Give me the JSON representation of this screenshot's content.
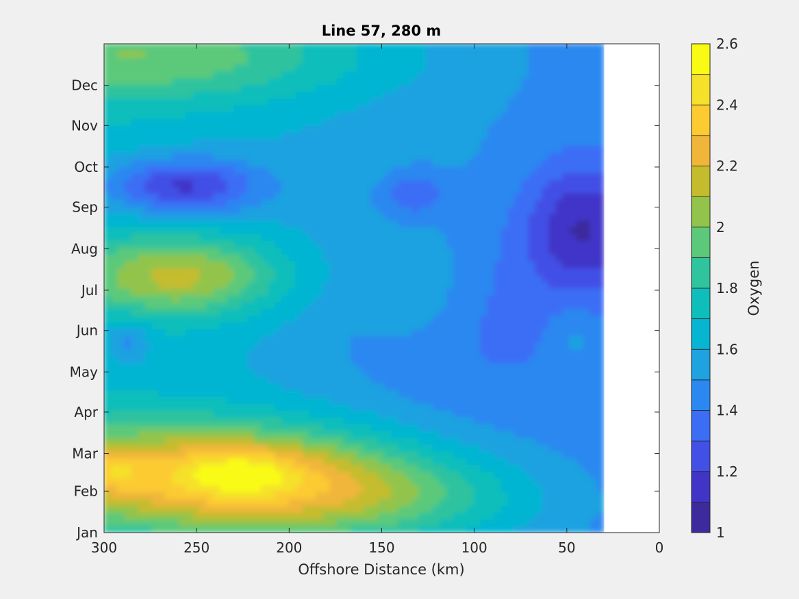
{
  "chart_data": {
    "type": "heatmap",
    "subtype": "filled-contour",
    "title": "Line 57, 280 m",
    "xlabel": "Offshore Distance (km)",
    "ylabel": "",
    "xlim": [
      300,
      0
    ],
    "x_reversed": true,
    "x_ticks": [
      300,
      250,
      200,
      150,
      100,
      50,
      0
    ],
    "y_ticks": [
      "Jan",
      "Feb",
      "Mar",
      "Apr",
      "May",
      "Jun",
      "Jul",
      "Aug",
      "Sep",
      "Oct",
      "Nov",
      "Dec"
    ],
    "y_period": "annual cycle (Jan to end of Dec)",
    "no_data_below_km": 30,
    "colorbar": {
      "label": "Oxygen",
      "range": [
        1,
        2.6
      ],
      "ticks": [
        1,
        1.2,
        1.4,
        1.6,
        1.8,
        2,
        2.2,
        2.4,
        2.6
      ],
      "levels": [
        1,
        1.1,
        1.2,
        1.3,
        1.4,
        1.5,
        1.6,
        1.7,
        1.8,
        1.9,
        2.0,
        2.1,
        2.2,
        2.3,
        2.4,
        2.5,
        2.6
      ],
      "colormap": "parula",
      "level_colors": [
        "#3d2b9e",
        "#4135c8",
        "#4350e6",
        "#3b6ef5",
        "#2b88f0",
        "#1ea2e0",
        "#05b5d2",
        "#0dbebb",
        "#2fc39e",
        "#5cc97a",
        "#92c44c",
        "#c5bc2d",
        "#f0b63a",
        "#fccb31",
        "#f5e02a",
        "#f9fb15"
      ]
    },
    "features": [
      {
        "label": "max",
        "x_km": 295,
        "month": "Feb",
        "value": 2.5
      },
      {
        "label": "max",
        "x_km": 225,
        "month": "Feb",
        "value": 2.35
      },
      {
        "label": "max",
        "x_km": 258,
        "month": "Jul",
        "value": 2.05
      },
      {
        "label": "min",
        "x_km": 260,
        "month": "Sep",
        "value": 1.15
      },
      {
        "label": "min",
        "x_km": 133,
        "month": "Sep",
        "value": 1.1
      },
      {
        "label": "min",
        "x_km": 42,
        "month": "Aug",
        "value": 1.2
      },
      {
        "label": "min",
        "x_km": 287,
        "month": "May",
        "value": 1.3
      }
    ]
  }
}
